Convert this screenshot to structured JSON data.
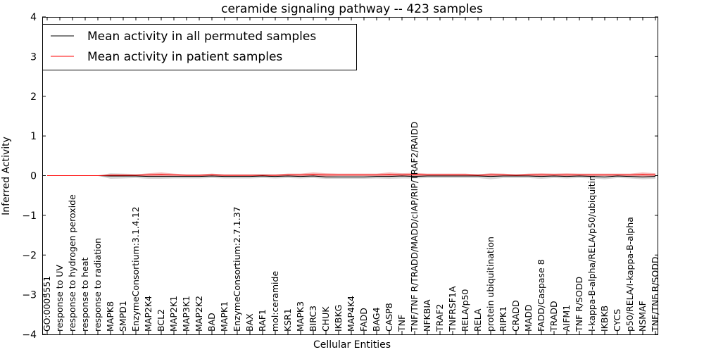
{
  "chart_data": {
    "type": "line",
    "title": "ceramide signaling pathway -- 423 samples",
    "xlabel": "Cellular Entities",
    "ylabel": "Inferred Activity",
    "ylim": [
      -4,
      4
    ],
    "yticks": [
      -4,
      -3,
      -2,
      -1,
      0,
      1,
      2,
      3,
      4
    ],
    "ytick_labels": [
      "−4",
      "−3",
      "−2",
      "−1",
      "0",
      "1",
      "2",
      "3",
      "4"
    ],
    "legend_position": "upper-left",
    "categories": [
      "GO:0005551",
      "response to UV",
      "response to hydrogen peroxide",
      "response to heat",
      "response to radiation",
      "MAPK8",
      "SMPD1",
      "EnzymeConsortium:3.1.4.12",
      "MAP2K4",
      "BCL2",
      "MAP2K1",
      "MAP3K1",
      "MAP2K2",
      "BAD",
      "MAPK1",
      "EnzymeConsortium:2.7.1.37",
      "BAX",
      "RAF1",
      "mol:ceramide",
      "KSR1",
      "MAPK3",
      "BIRC3",
      "CHUK",
      "IKBKG",
      "MAP4K4",
      "FADD",
      "BAG4",
      "CASP8",
      "TNF",
      "TNF/TNF R/TRADD/MADD/cIAP/RIP/TRAF2/RAIDD",
      "NFKBIA",
      "TRAF2",
      "TNFRSF1A",
      "RELA/p50",
      "RELA",
      "protein ubiquitination",
      "RIPK1",
      "CRADD",
      "MADD",
      "FADD/Caspase 8",
      "TRADD",
      "AIFM1",
      "TNF R/SODD",
      "I-kappa-B-alpha/RELA/p50/ubiquitin",
      "IKBKB",
      "CYCS",
      "p50/RELA/I-kappa-B-alpha",
      "NSMAF",
      "TNF/TNF R/SODD"
    ],
    "series": [
      {
        "name": "Mean activity in all permuted samples",
        "color": "#000000",
        "band_color": "#b0b0b0",
        "values": [
          0,
          0,
          0,
          0,
          0,
          -0.01,
          -0.01,
          -0.01,
          -0.02,
          -0.02,
          -0.02,
          -0.02,
          -0.02,
          -0.01,
          -0.02,
          -0.02,
          -0.02,
          -0.01,
          -0.02,
          -0.01,
          -0.02,
          -0.01,
          -0.03,
          -0.03,
          -0.03,
          -0.03,
          -0.02,
          -0.02,
          -0.01,
          -0.02,
          -0.01,
          -0.01,
          -0.01,
          -0.01,
          -0.01,
          -0.02,
          -0.01,
          -0.01,
          -0.01,
          -0.02,
          -0.01,
          -0.02,
          -0.01,
          -0.02,
          -0.03,
          -0.01,
          -0.02,
          -0.03,
          -0.02
        ],
        "spread": [
          0,
          0,
          0,
          0,
          0,
          0.07,
          0.06,
          0.05,
          0.06,
          0.06,
          0.05,
          0.05,
          0.05,
          0.05,
          0.05,
          0.05,
          0.05,
          0.05,
          0.05,
          0.05,
          0.05,
          0.05,
          0.05,
          0.05,
          0.05,
          0.05,
          0.05,
          0.06,
          0.06,
          0.05,
          0.05,
          0.05,
          0.05,
          0.05,
          0.05,
          0.07,
          0.05,
          0.05,
          0.05,
          0.06,
          0.05,
          0.05,
          0.05,
          0.05,
          0.06,
          0.05,
          0.05,
          0.06,
          0.06
        ]
      },
      {
        "name": "Mean activity in patient samples",
        "color": "#ff0000",
        "band_color": "#f08080",
        "values": [
          0,
          0,
          0,
          0,
          0,
          0.01,
          0.01,
          0.01,
          0.02,
          0.03,
          0.02,
          0.01,
          0.01,
          0.02,
          0.01,
          0.01,
          0.01,
          0.01,
          0.01,
          0.02,
          0.02,
          0.03,
          0.02,
          0.02,
          0.02,
          0.02,
          0.02,
          0.03,
          0.02,
          0.03,
          0.02,
          0.02,
          0.02,
          0.02,
          0.01,
          0.02,
          0.02,
          0.01,
          0.02,
          0.02,
          0.02,
          0.02,
          0.02,
          0.02,
          0.02,
          0.02,
          0.02,
          0.03,
          0.02
        ],
        "spread": [
          0,
          0,
          0,
          0,
          0,
          0.03,
          0.03,
          0.02,
          0.04,
          0.05,
          0.03,
          0.02,
          0.02,
          0.03,
          0.02,
          0.02,
          0.02,
          0.02,
          0.02,
          0.03,
          0.03,
          0.05,
          0.04,
          0.03,
          0.03,
          0.03,
          0.03,
          0.05,
          0.04,
          0.04,
          0.03,
          0.03,
          0.03,
          0.03,
          0.02,
          0.04,
          0.03,
          0.02,
          0.03,
          0.04,
          0.03,
          0.04,
          0.03,
          0.03,
          0.03,
          0.03,
          0.03,
          0.05,
          0.04
        ]
      }
    ]
  }
}
